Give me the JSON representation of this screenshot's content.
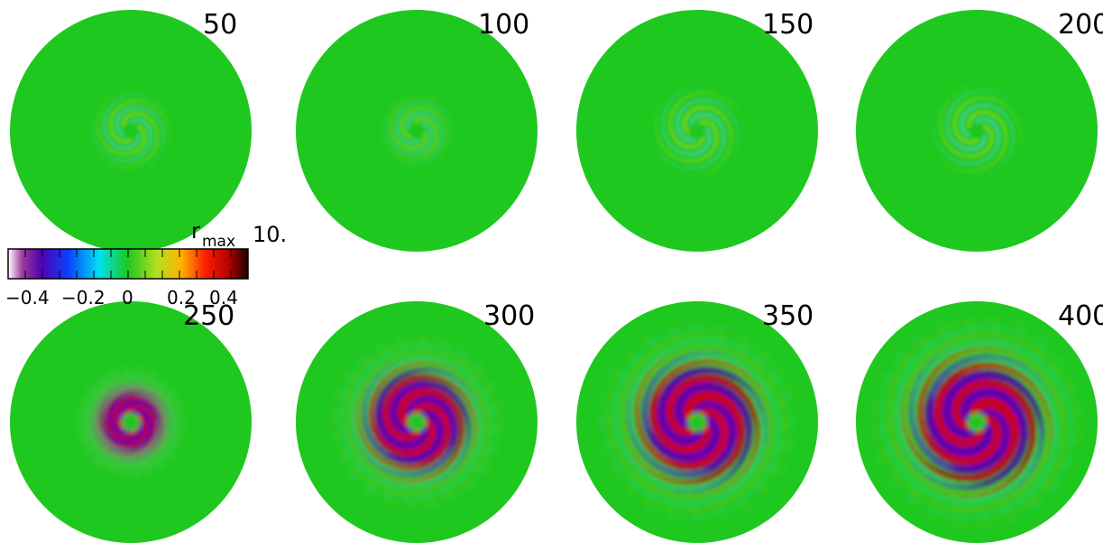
{
  "panels": [
    {
      "label": "50",
      "amp": 0.12,
      "arm_rmax": 0.45
    },
    {
      "label": "100",
      "amp": 0.18,
      "arm_rmax": 0.4
    },
    {
      "label": "150",
      "amp": 0.22,
      "arm_rmax": 0.5
    },
    {
      "label": "200",
      "amp": 0.22,
      "arm_rmax": 0.5
    },
    {
      "label": "250",
      "amp": 0.75,
      "arm_rmax": 0.45
    },
    {
      "label": "300",
      "amp": 1.0,
      "arm_rmax": 0.7
    },
    {
      "label": "350",
      "amp": 1.0,
      "arm_rmax": 0.8
    },
    {
      "label": "400",
      "amp": 1.0,
      "arm_rmax": 0.85
    }
  ],
  "colorbar": {
    "label_main": "r",
    "label_sub": "max",
    "label_value": "10.",
    "ticks": [
      "−0.4",
      "−0.2",
      "0",
      "0.2",
      "0.4"
    ],
    "range": [
      -0.5,
      0.5
    ]
  },
  "colors": {
    "background_field": "#1ec81e",
    "negative_strong": "#5000b4",
    "positive_strong": "#c80000"
  }
}
